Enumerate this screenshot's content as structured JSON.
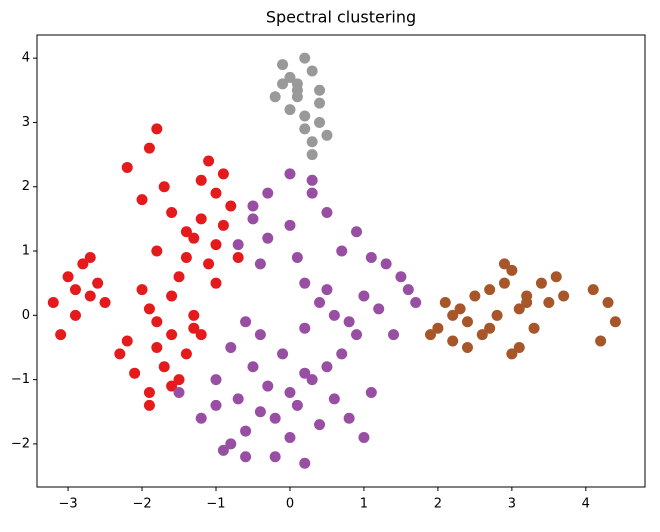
{
  "chart_data": {
    "type": "scatter",
    "title": "Spectral clustering",
    "xlim": [
      -3.42,
      4.8
    ],
    "ylim": [
      -2.67,
      4.36
    ],
    "xticks": [
      {
        "value": -3,
        "label": "−3"
      },
      {
        "value": -2,
        "label": "−2"
      },
      {
        "value": -1,
        "label": "−1"
      },
      0,
      1,
      2,
      3,
      4
    ],
    "yticks": [
      {
        "value": -2,
        "label": "−2"
      },
      {
        "value": -1,
        "label": "−1"
      },
      0,
      1,
      2,
      3,
      4
    ],
    "grid": false,
    "series": [
      {
        "color": "#e41a1c",
        "x": [
          -3.2,
          -3.0,
          -2.9,
          -2.8,
          -2.7,
          -2.6,
          -3.1,
          -2.9,
          -2.7,
          -2.5,
          -2.3,
          -2.1,
          -1.9,
          -1.8,
          -1.7,
          -1.6,
          -1.5,
          -1.4,
          -1.3,
          -2.0,
          -1.9,
          -1.8,
          -1.6,
          -1.5,
          -1.4,
          -1.3,
          -1.2,
          -1.1,
          -1.0,
          -0.9,
          -0.8,
          -1.2,
          -1.1,
          -1.0,
          -0.9,
          -2.2,
          -2.0,
          -1.9,
          -1.7,
          -1.6,
          -1.4,
          -1.8,
          -2.2,
          -1.9,
          -1.6,
          -1.3,
          -1.0,
          -0.7,
          -1.2,
          -1.8
        ],
        "values": [
          0.2,
          0.6,
          0.4,
          0.8,
          0.3,
          0.5,
          -0.3,
          0.0,
          0.9,
          0.2,
          -0.6,
          -0.9,
          -1.2,
          -0.5,
          -0.8,
          -0.3,
          -1.0,
          -0.6,
          -0.2,
          0.4,
          0.1,
          -0.1,
          0.3,
          0.6,
          0.9,
          1.2,
          1.5,
          0.8,
          1.1,
          1.4,
          1.7,
          2.1,
          2.4,
          1.9,
          2.2,
          2.3,
          1.8,
          2.6,
          2.0,
          1.6,
          1.3,
          1.0,
          -0.4,
          -1.4,
          -1.1,
          0.0,
          0.5,
          0.9,
          -0.3,
          2.9
        ]
      },
      {
        "color": "#984ea3",
        "x": [
          -1.5,
          -1.2,
          -1.0,
          -0.8,
          -0.6,
          -0.4,
          -0.2,
          0.0,
          0.2,
          0.4,
          0.6,
          0.8,
          1.0,
          1.1,
          -1.0,
          -0.7,
          -0.5,
          -0.3,
          0.1,
          0.3,
          0.5,
          0.7,
          -0.9,
          -0.6,
          -0.2,
          0.0,
          0.2,
          -0.4,
          -0.8,
          -0.1,
          -0.5,
          -0.3,
          -0.7,
          -0.4,
          0.0,
          0.3,
          0.5,
          0.7,
          0.9,
          1.1,
          1.3,
          1.5,
          1.7,
          0.2,
          0.4,
          0.6,
          0.8,
          1.0,
          1.2,
          1.4,
          0.0,
          0.3,
          -0.3,
          -0.5,
          0.1,
          0.5,
          0.9,
          0.2,
          -0.6,
          1.6
        ],
        "values": [
          -1.2,
          -1.6,
          -1.4,
          -2.0,
          -1.8,
          -1.5,
          -2.2,
          -1.9,
          -2.3,
          -1.7,
          -1.3,
          -1.6,
          -1.9,
          -1.2,
          -1.0,
          -1.3,
          -0.8,
          -1.1,
          -1.4,
          -1.0,
          -0.8,
          -0.6,
          -2.1,
          -2.2,
          -1.6,
          -1.2,
          -0.9,
          -0.3,
          -0.5,
          -0.6,
          1.7,
          1.9,
          1.1,
          0.8,
          1.4,
          1.9,
          1.6,
          1.0,
          1.3,
          0.9,
          0.8,
          0.6,
          0.2,
          0.5,
          0.2,
          0.0,
          -0.1,
          0.3,
          0.1,
          -0.3,
          2.2,
          2.1,
          1.2,
          1.5,
          0.9,
          0.4,
          -0.3,
          -0.2,
          -0.1,
          0.4
        ]
      },
      {
        "color": "#a65628",
        "x": [
          2.0,
          2.1,
          2.2,
          2.3,
          2.4,
          2.5,
          2.6,
          2.7,
          2.8,
          2.9,
          3.0,
          3.1,
          3.2,
          3.3,
          3.4,
          3.6,
          3.7,
          4.1,
          4.2,
          4.3,
          2.2,
          2.4,
          2.7,
          3.0,
          3.2,
          4.4,
          1.9,
          2.9,
          3.1,
          3.5
        ],
        "values": [
          -0.2,
          0.2,
          -0.4,
          0.1,
          -0.1,
          0.3,
          -0.3,
          0.4,
          0.0,
          0.5,
          0.7,
          -0.5,
          0.3,
          -0.2,
          0.5,
          0.6,
          0.3,
          0.4,
          -0.4,
          0.2,
          0.0,
          -0.5,
          -0.2,
          -0.6,
          0.2,
          -0.1,
          -0.3,
          0.8,
          0.1,
          0.2
        ]
      },
      {
        "color": "#999999",
        "x": [
          -0.1,
          0.0,
          0.1,
          -0.2,
          0.0,
          0.1,
          0.2,
          0.3,
          0.4,
          0.2,
          0.3,
          0.4,
          0.5,
          0.3,
          0.2,
          -0.1,
          0.1,
          0.4
        ],
        "values": [
          3.9,
          3.7,
          3.5,
          3.4,
          3.2,
          3.6,
          4.0,
          3.8,
          3.3,
          2.9,
          2.7,
          3.0,
          2.8,
          2.5,
          3.1,
          3.6,
          3.4,
          3.5
        ]
      }
    ]
  }
}
